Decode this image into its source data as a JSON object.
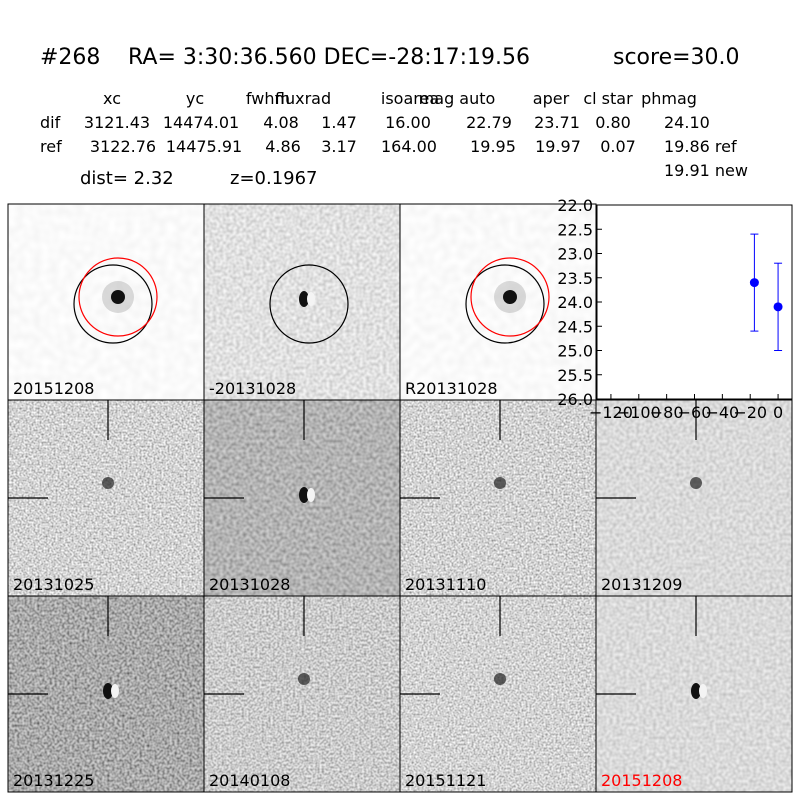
{
  "header": {
    "id": "#268",
    "coords": "RA= 3:30:36.560 DEC=-28:17:19.56",
    "score": "score=30.0"
  },
  "table": {
    "columns": [
      "xc",
      "yc",
      "fwhm",
      "fluxrad",
      "isoarea",
      "mag auto",
      "aper",
      "cl star",
      "phmag"
    ],
    "rows": [
      {
        "label": "dif",
        "cells": [
          "3121.43",
          "14474.01",
          "4.08",
          "1.47",
          "16.00",
          "22.79",
          "23.71",
          "0.80",
          "24.10"
        ]
      },
      {
        "label": "ref",
        "cells": [
          "3122.76",
          "14475.91",
          "4.86",
          "3.17",
          "164.00",
          "19.95",
          "19.97",
          "0.07",
          "19.86 ref"
        ]
      }
    ],
    "extra": "19.91 new"
  },
  "info": {
    "dist": "dist=  2.32",
    "z": "z=0.1967"
  },
  "panels": [
    "20151208",
    "-20131028",
    "R20131028",
    "20131025",
    "20131028",
    "20131110",
    "20131209",
    "20131225",
    "20140108",
    "20151121",
    "20151208"
  ],
  "chart_data": {
    "type": "scatter",
    "x": [
      -17,
      0
    ],
    "values": [
      23.6,
      24.1
    ],
    "errors": [
      1.0,
      0.9
    ],
    "color": "#0000ff",
    "xlim": [
      -130,
      10
    ],
    "ylim": [
      22,
      26
    ],
    "y_inverted": true,
    "xticks": [
      {
        "value": -120,
        "label": "−120"
      },
      {
        "value": -100,
        "label": "−100"
      },
      {
        "value": -80,
        "label": "−80"
      },
      {
        "value": -60,
        "label": "−60"
      },
      {
        "value": -40,
        "label": "−40"
      },
      {
        "value": -20,
        "label": "−20"
      },
      0
    ],
    "yticks": [
      {
        "value": 22,
        "label": "22.0"
      },
      22.5,
      {
        "value": 23,
        "label": "23.0"
      },
      23.5,
      {
        "value": 24,
        "label": "24.0"
      },
      24.5,
      {
        "value": 25,
        "label": "25.0"
      },
      25.5,
      {
        "value": 26,
        "label": "26.0"
      }
    ]
  }
}
